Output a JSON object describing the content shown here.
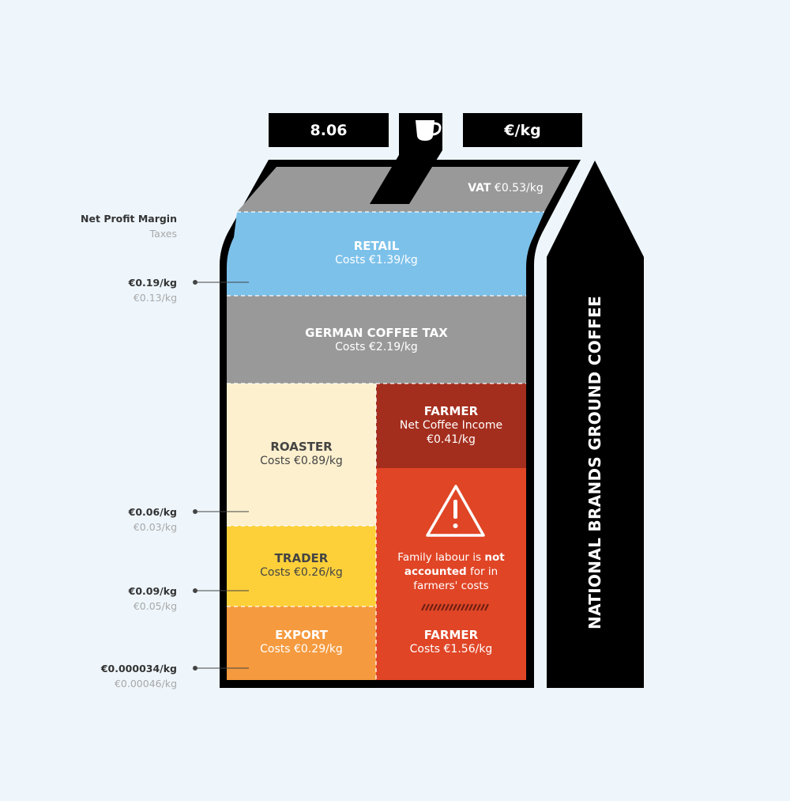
{
  "header": {
    "total": "8.06",
    "unit": "€/kg",
    "icon": "coffee-cup-icon"
  },
  "legend": {
    "profit": "Net Profit Margin",
    "taxes": "Taxes"
  },
  "segments": {
    "vat": {
      "name": "VAT",
      "value": "€0.53/kg"
    },
    "retail": {
      "name": "RETAIL",
      "value": "Costs €1.39/kg"
    },
    "tax": {
      "name": "GERMAN COFFEE TAX",
      "value": "Costs €2.19/kg"
    },
    "roaster": {
      "name": "ROASTER",
      "value": "Costs €0.89/kg"
    },
    "trader": {
      "name": "TRADER",
      "value": "Costs €0.26/kg"
    },
    "export": {
      "name": "EXPORT",
      "value": "Costs €0.29/kg"
    },
    "farmer_income": {
      "name": "FARMER",
      "line1": "Net Coffee Income",
      "line2": "€0.41/kg"
    },
    "farmer_cost": {
      "name": "FARMER",
      "value": "Costs €1.56/kg"
    }
  },
  "warning": {
    "pre": "Family labour is ",
    "bold1": "not",
    "mid": "accounted",
    "post": " for in",
    "last": "farmers' costs",
    "icon": "warning-triangle-icon"
  },
  "margins": [
    {
      "profit": "€0.19/kg",
      "tax": "€0.13/kg"
    },
    {
      "profit": "€0.06/kg",
      "tax": "€0.03/kg"
    },
    {
      "profit": "€0.09/kg",
      "tax": "€0.05/kg"
    },
    {
      "profit": "€0.000034/kg",
      "tax": "€0.00046/kg"
    }
  ],
  "side_label": "NATIONAL BRANDS GROUND COFFEE",
  "colors": {
    "bg": "#eef6fc",
    "gray": "#999999",
    "retail": "#7cc1ea",
    "roaster": "#fdf0cf",
    "trader": "#fdd03a",
    "export": "#f59a3e",
    "farmer_income": "#a42e1e",
    "farmer_cost": "#e04526"
  }
}
